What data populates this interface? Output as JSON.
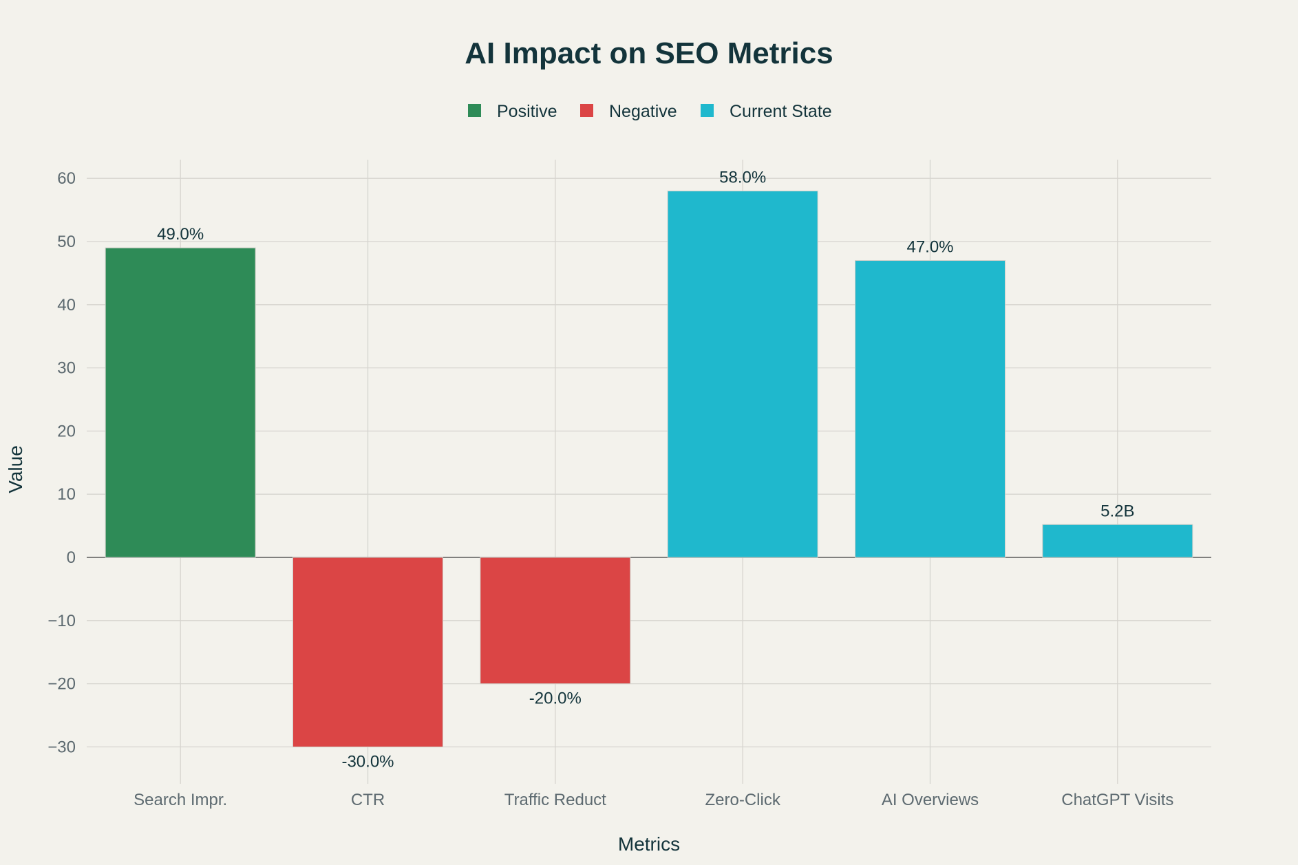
{
  "chart_data": {
    "type": "bar",
    "title": "AI Impact on SEO Metrics",
    "xlabel": "Metrics",
    "ylabel": "Value",
    "ylim": [
      -35,
      63
    ],
    "yticks": [
      60,
      50,
      40,
      30,
      20,
      10,
      0,
      -10,
      -20,
      -30
    ],
    "ytick_labels": [
      "60",
      "50",
      "40",
      "30",
      "20",
      "10",
      "0",
      "−10",
      "−20",
      "−30"
    ],
    "grid": true,
    "legend_position": "top-center",
    "legend": [
      {
        "name": "Positive",
        "color": "#2E8B57"
      },
      {
        "name": "Negative",
        "color": "#DB4545"
      },
      {
        "name": "Current State",
        "color": "#1FB8CD"
      }
    ],
    "categories": [
      "Search Impr.",
      "CTR",
      "Traffic Reduct",
      "Zero-Click",
      "AI Overviews",
      "ChatGPT Visits"
    ],
    "values": [
      49,
      -30,
      -20,
      58,
      47,
      5.2
    ],
    "groups": [
      "Positive",
      "Negative",
      "Negative",
      "Current State",
      "Current State",
      "Current State"
    ],
    "data_labels": [
      "49.0%",
      "-30.0%",
      "-20.0%",
      "58.0%",
      "47.0%",
      "5.2B"
    ]
  }
}
